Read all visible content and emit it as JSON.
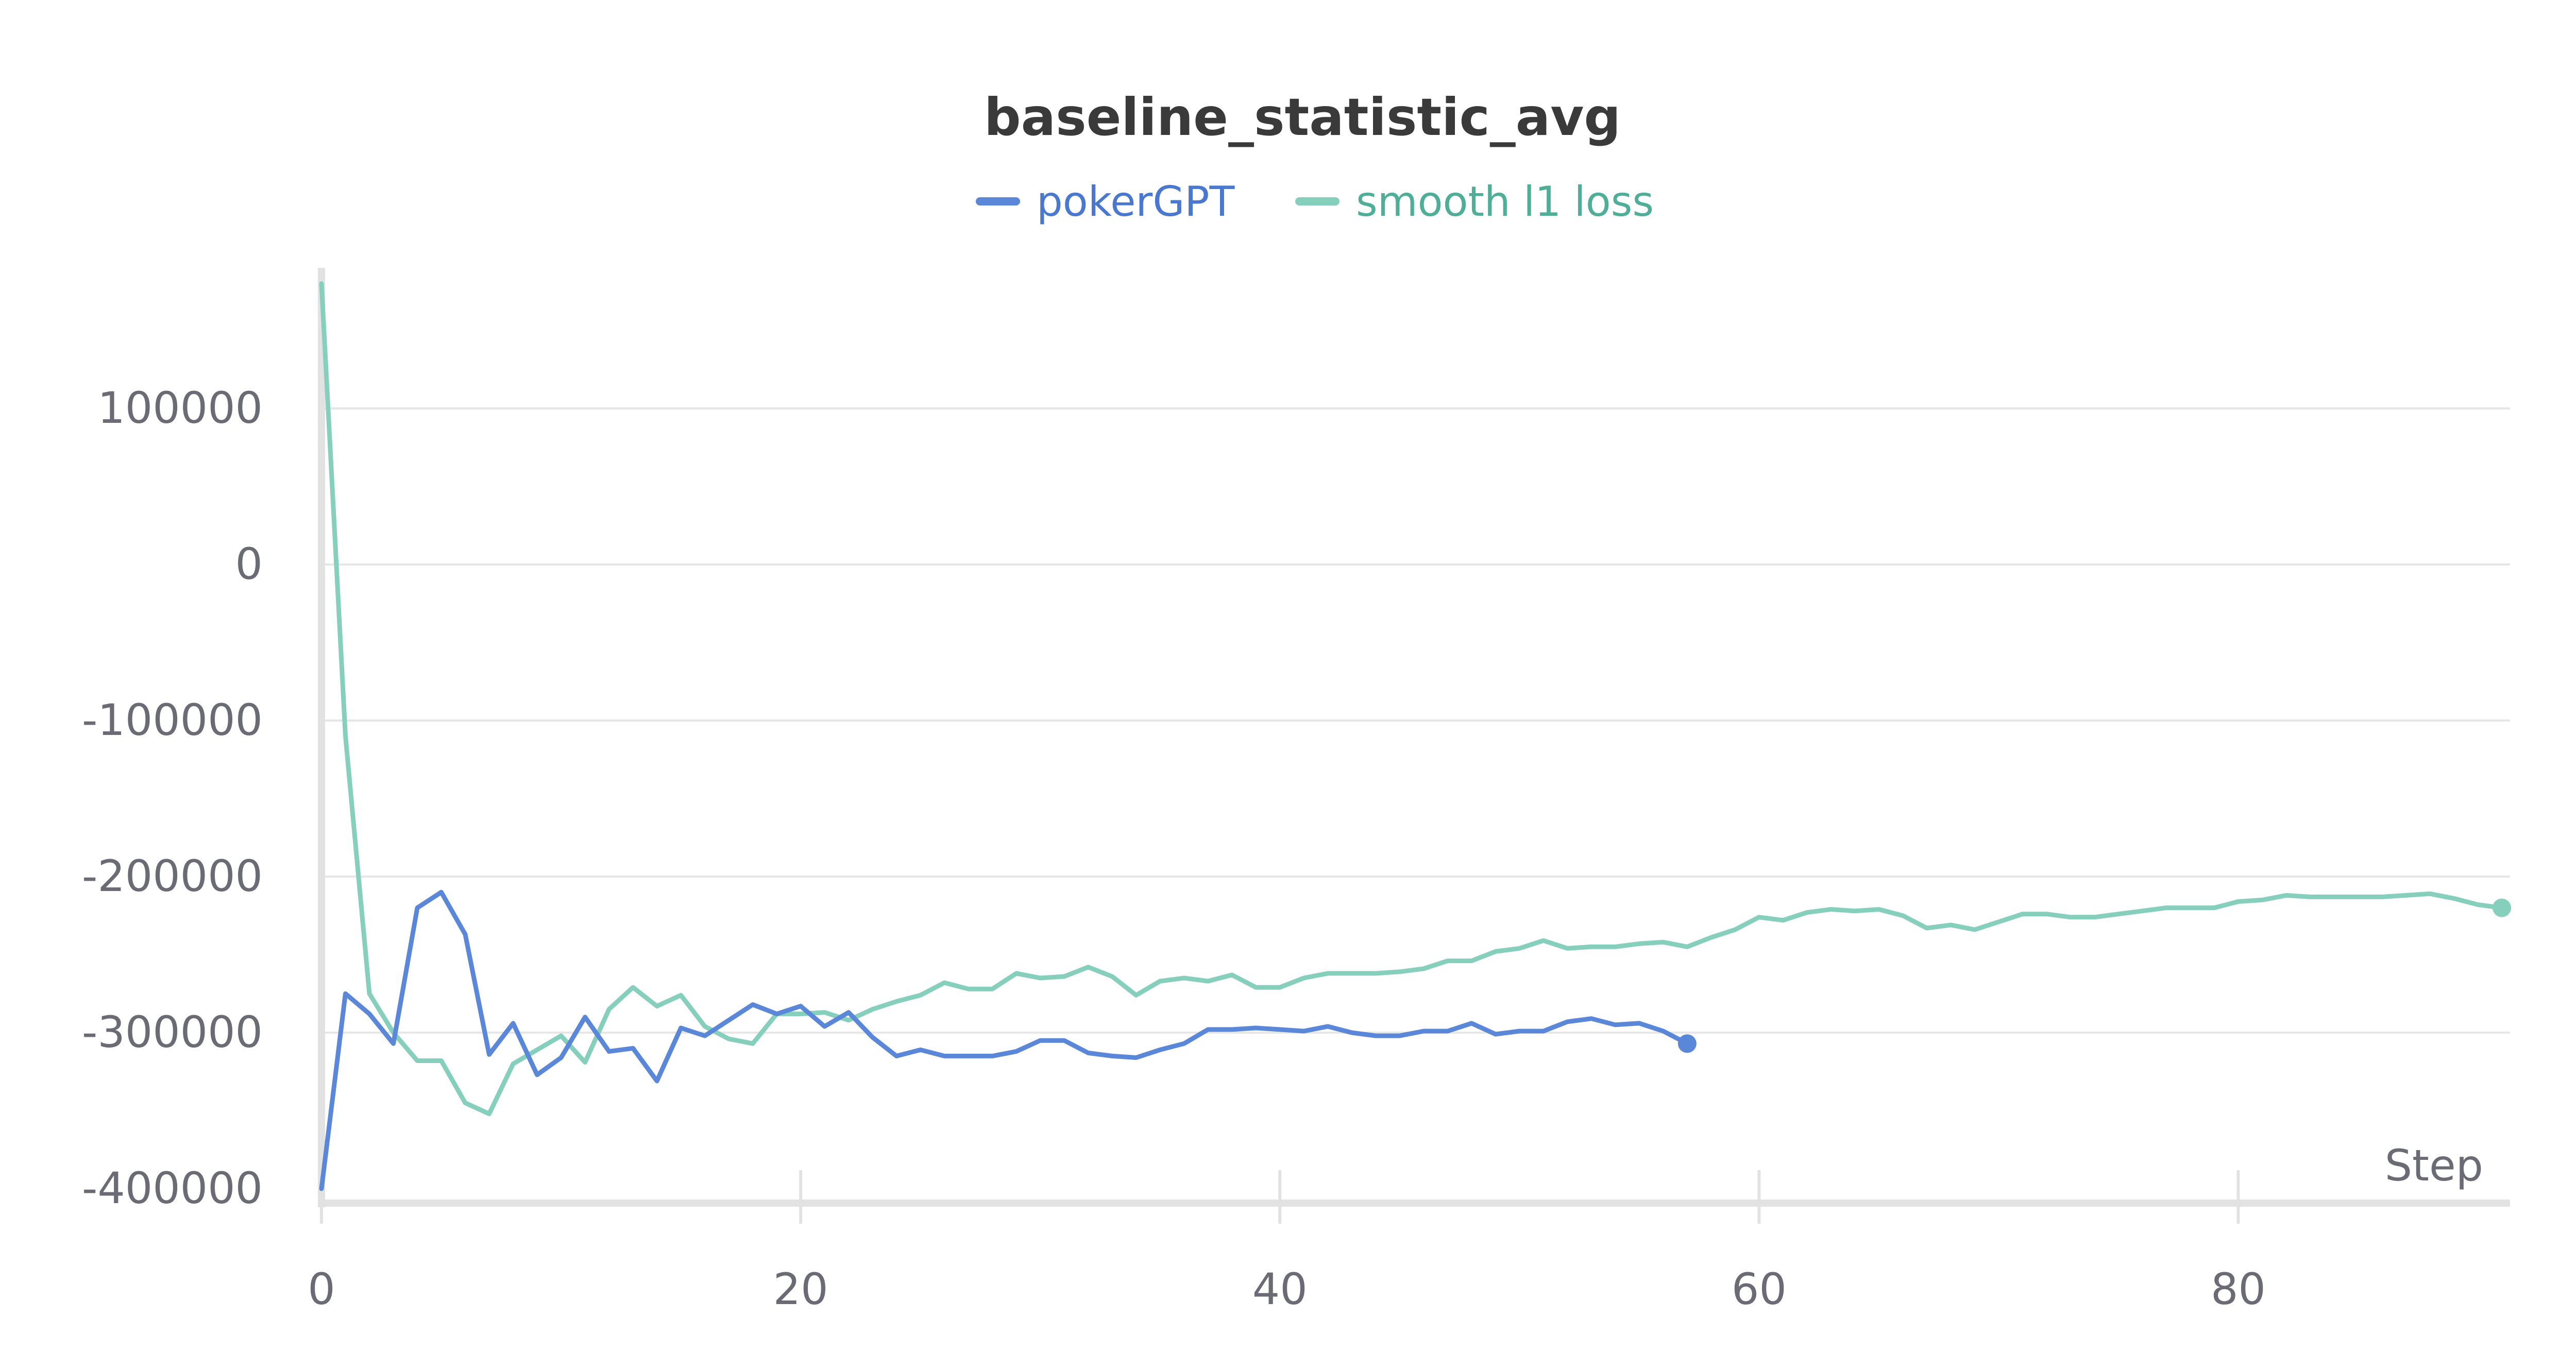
{
  "chart_data": {
    "type": "line",
    "title": "baseline_statistic_avg",
    "xlabel": "Step",
    "ylabel": "",
    "xlim": [
      0,
      91
    ],
    "ylim": [
      -400000,
      190000
    ],
    "x_ticks": [
      0,
      20,
      40,
      60,
      80
    ],
    "x_tick_labels": [
      "0",
      "20",
      "40",
      "60",
      "80"
    ],
    "y_ticks": [
      100000,
      0,
      -100000,
      -200000,
      -300000,
      -400000
    ],
    "y_tick_labels": [
      "100000",
      "0",
      "-100000",
      "-200000",
      "-300000",
      "-400000"
    ],
    "grid": true,
    "legend_position": "top-center",
    "colors": {
      "pokerGPT": "#5b87d9",
      "smooth_l1_loss": "#86cfbc",
      "legend_text_pokerGPT": "#4a78cf",
      "legend_text_smooth": "#4fae97"
    },
    "legend": [
      "pokerGPT",
      "smooth l1 loss"
    ],
    "series": [
      {
        "name": "pokerGPT",
        "x": [
          0,
          1,
          2,
          3,
          4,
          5,
          6,
          7,
          8,
          9,
          10,
          11,
          12,
          13,
          14,
          15,
          16,
          17,
          18,
          19,
          20,
          21,
          22,
          23,
          24,
          25,
          26,
          27,
          28,
          29,
          30,
          31,
          32,
          33,
          34,
          35,
          36,
          37,
          38,
          39,
          40,
          41,
          42,
          43,
          44,
          45,
          46,
          47,
          48,
          49,
          50,
          51,
          52,
          53,
          54,
          55,
          56,
          57
        ],
        "values": [
          -400000,
          -275000,
          -288000,
          -307000,
          -220000,
          -210000,
          -237000,
          -314000,
          -294000,
          -327000,
          -316000,
          -290000,
          -312000,
          -310000,
          -331000,
          -297000,
          -302000,
          -292000,
          -282000,
          -288000,
          -283000,
          -296000,
          -287000,
          -303000,
          -315000,
          -311000,
          -315000,
          -315000,
          -315000,
          -312000,
          -305000,
          -305000,
          -313000,
          -315000,
          -316000,
          -311000,
          -307000,
          -298000,
          -298000,
          -297000,
          -298000,
          -299000,
          -296000,
          -300000,
          -302000,
          -302000,
          -299000,
          -299000,
          -294000,
          -301000,
          -299000,
          -299000,
          -293000,
          -291000,
          -295000,
          -294000,
          -299000,
          -307000
        ]
      },
      {
        "name": "smooth l1 loss",
        "x": [
          0,
          1,
          2,
          3,
          4,
          5,
          6,
          7,
          8,
          9,
          10,
          11,
          12,
          13,
          14,
          15,
          16,
          17,
          18,
          19,
          20,
          21,
          22,
          23,
          24,
          25,
          26,
          27,
          28,
          29,
          30,
          31,
          32,
          33,
          34,
          35,
          36,
          37,
          38,
          39,
          40,
          41,
          42,
          43,
          44,
          45,
          46,
          47,
          48,
          49,
          50,
          51,
          52,
          53,
          54,
          55,
          56,
          57,
          58,
          59,
          60,
          61,
          62,
          63,
          64,
          65,
          66,
          67,
          68,
          69,
          70,
          71,
          72,
          73,
          74,
          75,
          76,
          77,
          78,
          79,
          80,
          81,
          82,
          83,
          84,
          85,
          86,
          87,
          88,
          89,
          90,
          91
        ],
        "values": [
          180000,
          -110000,
          -275000,
          -300000,
          -318000,
          -318000,
          -345000,
          -352000,
          -320000,
          -311000,
          -302000,
          -319000,
          -285000,
          -271000,
          -283000,
          -276000,
          -296000,
          -304000,
          -307000,
          -288000,
          -288000,
          -287000,
          -292000,
          -285000,
          -280000,
          -276000,
          -268000,
          -272000,
          -272000,
          -262000,
          -265000,
          -264000,
          -258000,
          -264000,
          -276000,
          -267000,
          -265000,
          -267000,
          -263000,
          -271000,
          -271000,
          -265000,
          -262000,
          -262000,
          -262000,
          -261000,
          -259000,
          -254000,
          -254000,
          -248000,
          -246000,
          -241000,
          -246000,
          -245000,
          -245000,
          -243000,
          -242000,
          -245000,
          -239000,
          -234000,
          -226000,
          -228000,
          -223000,
          -221000,
          -222000,
          -221000,
          -225000,
          -233000,
          -231000,
          -234000,
          -229000,
          -224000,
          -224000,
          -226000,
          -226000,
          -224000,
          -222000,
          -220000,
          -220000,
          -220000,
          -216000,
          -215000,
          -212000,
          -213000,
          -213000,
          -213000,
          -213000,
          -212000,
          -211000,
          -214000,
          -218000,
          -220000
        ]
      }
    ]
  }
}
